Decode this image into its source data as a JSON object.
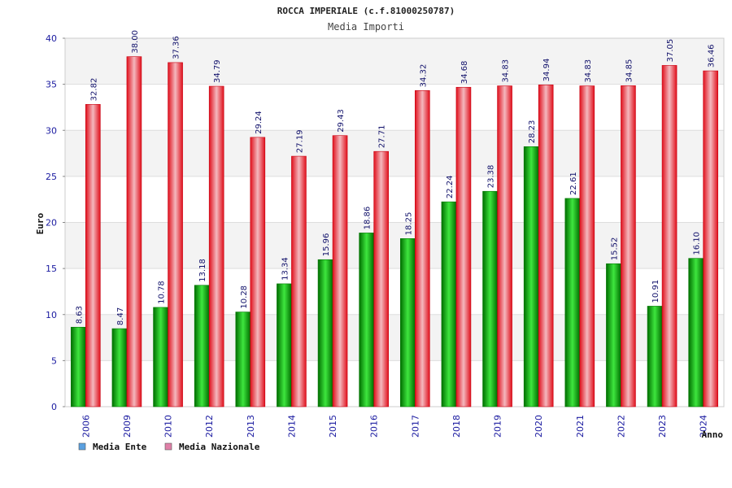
{
  "chart_data": {
    "type": "bar",
    "title": "ROCCA IMPERIALE (c.f.81000250787)",
    "subtitle": "Media Importi",
    "xlabel": "Anno",
    "ylabel": "Euro",
    "ylim": [
      0,
      40
    ],
    "yticks": [
      "0",
      "5",
      "10",
      "15",
      "20",
      "25",
      "30",
      "35",
      "40"
    ],
    "grid": true,
    "legend_position": "bottom-left",
    "categories": [
      "2006",
      "2009",
      "2010",
      "2012",
      "2013",
      "2014",
      "2015",
      "2016",
      "2017",
      "2018",
      "2019",
      "2020",
      "2021",
      "2022",
      "2023",
      "2024"
    ],
    "series": [
      {
        "name": "Media Ente",
        "color": "#0ab30a",
        "legend_color": "#5aa0e0",
        "values": [
          8.63,
          8.47,
          10.78,
          13.18,
          10.28,
          13.34,
          15.96,
          18.86,
          18.25,
          22.24,
          23.38,
          28.23,
          22.61,
          15.52,
          10.91,
          16.1
        ],
        "labels": [
          "8.63",
          "8.47",
          "10.78",
          "13.18",
          "10.28",
          "13.34",
          "15.96",
          "18.86",
          "18.25",
          "22.24",
          "23.38",
          "28.23",
          "22.61",
          "15.52",
          "10.91",
          "16.10"
        ]
      },
      {
        "name": "Media Nazionale",
        "color": "#e8202c",
        "legend_color": "#e080a8",
        "values": [
          32.82,
          38.0,
          37.36,
          34.79,
          29.24,
          27.19,
          29.43,
          27.71,
          34.32,
          34.68,
          34.83,
          34.94,
          34.83,
          34.85,
          37.05,
          36.46
        ],
        "labels": [
          "32.82",
          "38.00",
          "37.36",
          "34.79",
          "29.24",
          "27.19",
          "29.43",
          "27.71",
          "34.32",
          "34.68",
          "34.83",
          "34.94",
          "34.83",
          "34.85",
          "37.05",
          "36.46"
        ]
      }
    ]
  }
}
